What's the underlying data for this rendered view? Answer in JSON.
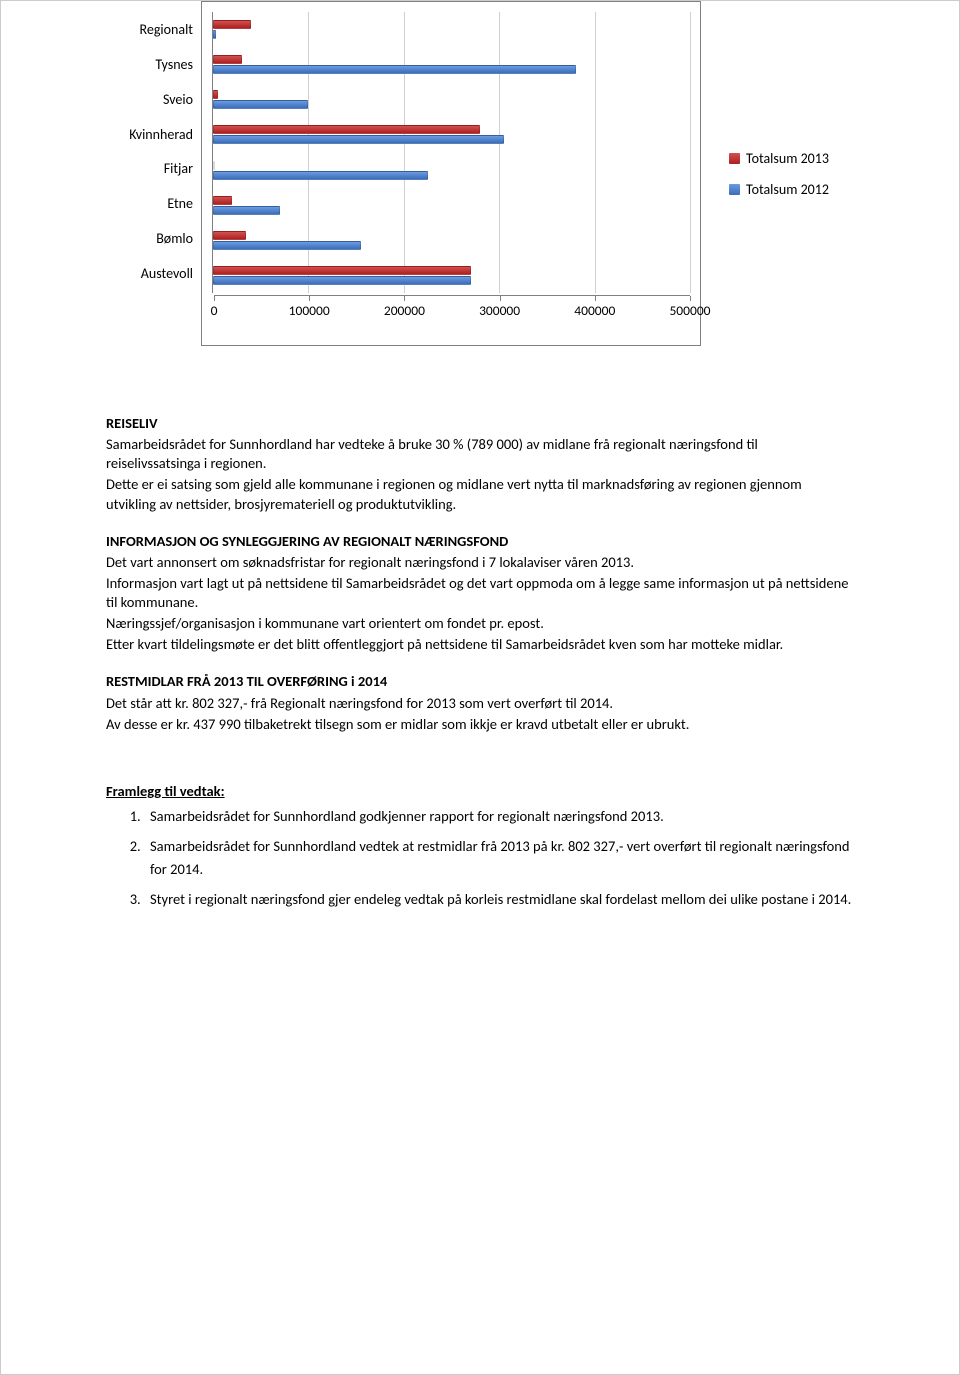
{
  "chart": {
    "type": "bar_horizontal",
    "categories": [
      "Regionalt",
      "Tysnes",
      "Sveio",
      "Kvinnherad",
      "Fitjar",
      "Etne",
      "Bømlo",
      "Austevoll"
    ],
    "series": [
      {
        "name": "Totalsum 2013",
        "color": "#c0504d",
        "values": [
          40000,
          30000,
          5000,
          280000,
          0,
          20000,
          35000,
          270000
        ]
      },
      {
        "name": "Totalsum 2012",
        "color": "#4f81bd",
        "values": [
          3000,
          380000,
          100000,
          305000,
          225000,
          70000,
          155000,
          270000
        ]
      }
    ],
    "xlim": [
      0,
      500000
    ],
    "xtick_step": 100000,
    "xlabels": [
      "0",
      "100000",
      "200000",
      "300000",
      "400000",
      "500000"
    ],
    "background_color": "#ffffff",
    "border_color": "#808080",
    "grid_color": "#d0d0d0"
  },
  "legend_labels": {
    "s2013": "Totalsum 2013",
    "s2012": "Totalsum 2012"
  },
  "sections": {
    "reiseliv_head": "REISELIV",
    "reiseliv_p1": "Samarbeidsrådet for Sunnhordland har vedteke å bruke 30 % (789 000) av midlane frå regionalt næringsfond til reiselivssatsinga i regionen.",
    "reiseliv_p2": "Dette er ei satsing som gjeld alle kommunane i regionen og midlane vert nytta til marknadsføring av regionen gjennom utvikling av nettsider, brosjyremateriell og produktutvikling.",
    "info_head": "INFORMASJON OG SYNLEGGJERING AV REGIONALT NÆRINGSFOND",
    "info_p1": "Det vart annonsert om søknadsfristar for regionalt næringsfond i 7 lokalaviser våren 2013.",
    "info_p2": "Informasjon vart lagt ut på nettsidene til Samarbeidsrådet og det vart oppmoda om å legge same informasjon ut på nettsidene til kommunane.",
    "info_p3": "Næringssjef/organisasjon i kommunane vart orientert om fondet pr. epost.",
    "info_p4": "Etter kvart tildelingsmøte er det blitt offentleggjort på nettsidene til Samarbeidsrådet kven som har motteke midlar.",
    "rest_head": "RESTMIDLAR FRÅ 2013 TIL OVERFØRING i 2014",
    "rest_p1": "Det står att kr. 802 327,- frå Regionalt næringsfond for 2013 som vert overført til 2014.",
    "rest_p2": "Av desse er kr. 437 990 tilbaketrekt tilsegn som er midlar som ikkje er kravd utbetalt eller er ubrukt.",
    "vedtak_head": "Framlegg til vedtak:",
    "vedtak_items": [
      "Samarbeidsrådet for Sunnhordland godkjenner rapport for regionalt næringsfond 2013.",
      "Samarbeidsrådet for Sunnhordland vedtek at restmidlar frå 2013 på kr. 802 327,- vert overført til regionalt næringsfond for 2014.",
      "Styret i regionalt næringsfond gjer endeleg vedtak på korleis restmidlane skal fordelast mellom dei ulike postane i 2014."
    ]
  }
}
